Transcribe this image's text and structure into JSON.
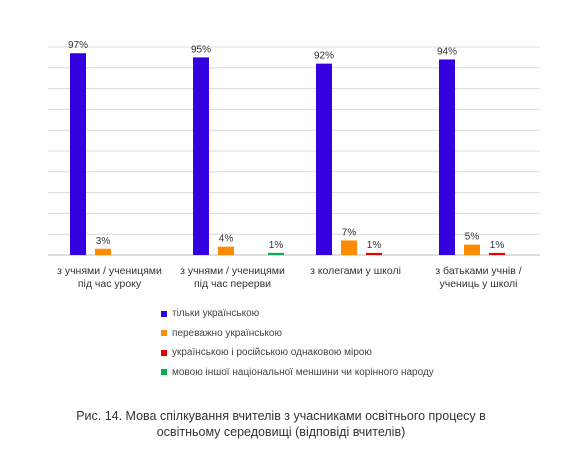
{
  "chart_data": {
    "type": "bar",
    "title": "",
    "xlabel": "",
    "ylabel": "",
    "ylim": [
      0,
      100
    ],
    "grid": true,
    "legend_position": "bottom",
    "categories": [
      [
        "з учнями / ученицями",
        "під час уроку"
      ],
      [
        "з учнями / ученицями",
        "під час перерви"
      ],
      [
        "з колегами у школі"
      ],
      [
        "з батьками учнів /",
        "учениць у школі"
      ]
    ],
    "series": [
      {
        "name": "тільки українською",
        "color": "#3300e0",
        "values": [
          97,
          95,
          92,
          94
        ]
      },
      {
        "name": "переважно українською",
        "color": "#ff8c00",
        "values": [
          3,
          4,
          7,
          5
        ]
      },
      {
        "name": "українською і російською однаковою мірою",
        "color": "#e60000",
        "values": [
          null,
          null,
          1,
          1
        ]
      },
      {
        "name": "мовою іншої національної меншини чи корінного народу",
        "color": "#00b050",
        "values": [
          null,
          1,
          null,
          null
        ]
      }
    ],
    "value_suffix": "%"
  },
  "caption": {
    "line1": "Рис. 14. Мова спілкування вчителів з учасниками освітнього процесу в",
    "line2": "освітньому середовищі (відповіді вчителів)"
  }
}
